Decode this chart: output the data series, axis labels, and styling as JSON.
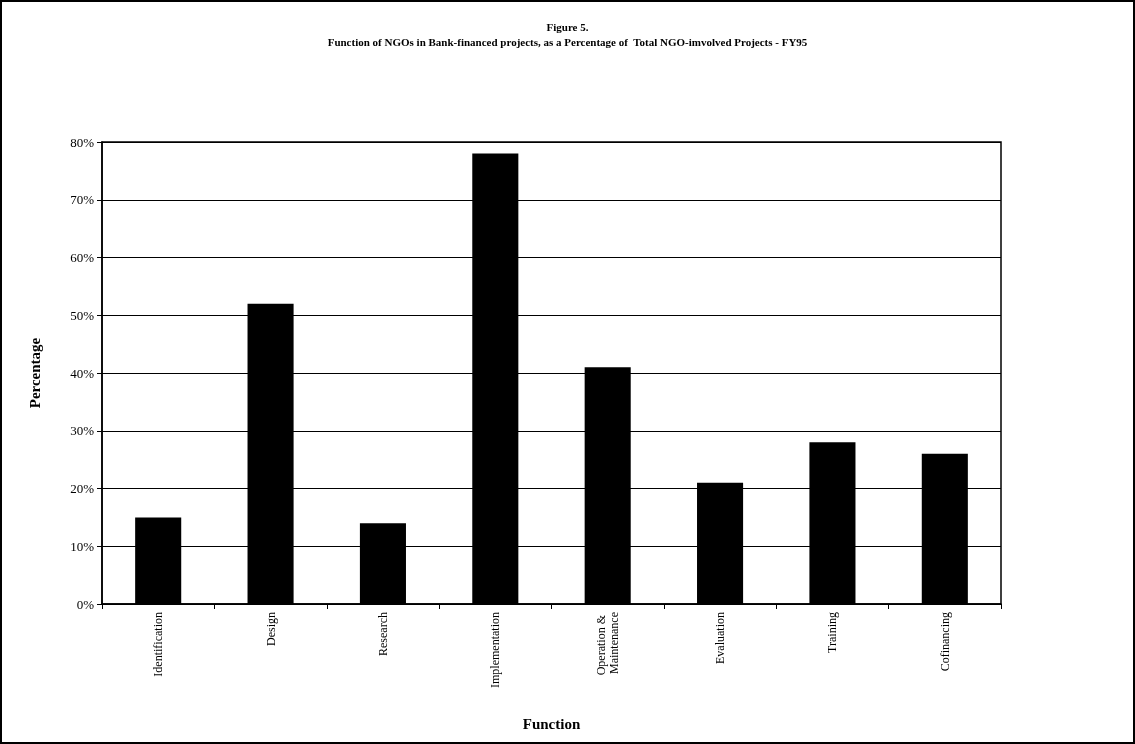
{
  "chart_data": {
    "type": "bar",
    "title": "Figure 5.",
    "subtitle": "Function of NGOs in Bank-financed projects, as a Percentage of  Total NGO-imvolved Projects - FY95",
    "xlabel": "Function",
    "ylabel": "Percentage",
    "categories": [
      "Identification",
      "Design",
      "Research",
      "Implementation",
      "Operation & Maintenance",
      "Evaluation",
      "Training",
      "Cofinancing"
    ],
    "values": [
      15,
      52,
      14,
      78,
      41,
      21,
      28,
      26
    ],
    "color": "#000000",
    "ylim": [
      0,
      80
    ],
    "yticks": [
      {
        "value": 0,
        "label": "0%"
      },
      {
        "value": 10,
        "label": "10%"
      },
      {
        "value": 20,
        "label": "20%"
      },
      {
        "value": 30,
        "label": "30%"
      },
      {
        "value": 40,
        "label": "40%"
      },
      {
        "value": 50,
        "label": "50%"
      },
      {
        "value": 60,
        "label": "60%"
      },
      {
        "value": 70,
        "label": "70%"
      },
      {
        "value": 80,
        "label": "80%"
      }
    ],
    "grid": "y"
  }
}
